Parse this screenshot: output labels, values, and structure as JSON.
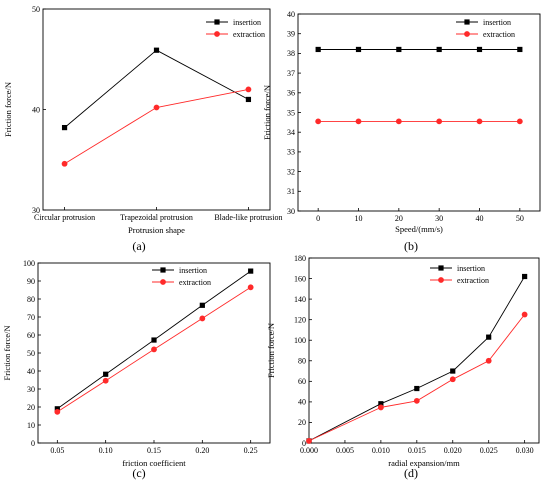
{
  "chart_data": [
    {
      "id": "a",
      "type": "line",
      "caption": "(a)",
      "categories": [
        "Circular protrusion",
        "Trapezoidal protrusion",
        "Blade-like protrusion"
      ],
      "series": [
        {
          "name": "insertion",
          "values": [
            38.2,
            45.9,
            41.0
          ],
          "color": "#000000",
          "marker": "square"
        },
        {
          "name": "extraction",
          "values": [
            34.6,
            40.2,
            42.0
          ],
          "color": "#ff2a2a",
          "marker": "circle"
        }
      ],
      "xlabel": "Protrusion shape",
      "ylabel": "Friction force/N",
      "ylim": [
        30,
        50
      ],
      "yticks": [
        30,
        40,
        50
      ],
      "grid": false,
      "legend": "top-right"
    },
    {
      "id": "b",
      "type": "line",
      "caption": "(b)",
      "x": [
        0,
        10,
        20,
        30,
        40,
        50
      ],
      "series": [
        {
          "name": "insertion",
          "values": [
            38.2,
            38.2,
            38.2,
            38.2,
            38.2,
            38.2
          ],
          "color": "#000000",
          "marker": "square"
        },
        {
          "name": "extraction",
          "values": [
            34.55,
            34.55,
            34.55,
            34.55,
            34.55,
            34.55
          ],
          "color": "#ff2a2a",
          "marker": "circle"
        }
      ],
      "xlabel": "Speed/(mm/s)",
      "ylabel": "Friction force/N",
      "xlim": [
        -5,
        55
      ],
      "xticks": [
        0,
        10,
        20,
        30,
        40,
        50
      ],
      "ylim": [
        30,
        40
      ],
      "yticks": [
        30,
        31,
        32,
        33,
        34,
        35,
        36,
        37,
        38,
        39,
        40
      ],
      "grid": false,
      "legend": "top-right"
    },
    {
      "id": "c",
      "type": "line",
      "caption": "(c)",
      "x": [
        0.05,
        0.1,
        0.15,
        0.2,
        0.25
      ],
      "x_labels": [
        "0.05",
        "0.10",
        "0.15",
        "0.20",
        "0.25"
      ],
      "series": [
        {
          "name": "insertion",
          "values": [
            19.0,
            38.2,
            57.2,
            76.5,
            95.5
          ],
          "color": "#000000",
          "marker": "square"
        },
        {
          "name": "extraction",
          "values": [
            17.3,
            34.6,
            52.0,
            69.2,
            86.5
          ],
          "color": "#ff2a2a",
          "marker": "circle"
        }
      ],
      "xlabel": "friction coefficient",
      "ylabel": "Friction force/N",
      "xlim": [
        0.03,
        0.27
      ],
      "ylim": [
        0,
        100
      ],
      "yticks": [
        0,
        10,
        20,
        30,
        40,
        50,
        60,
        70,
        80,
        90,
        100
      ],
      "grid": false,
      "legend": "top-center"
    },
    {
      "id": "d",
      "type": "line",
      "caption": "(d)",
      "x": [
        0,
        0.01,
        0.015,
        0.02,
        0.025,
        0.03
      ],
      "x_ticks": [
        0,
        0.005,
        0.01,
        0.015,
        0.02,
        0.025,
        0.03
      ],
      "x_labels": [
        "0.000",
        "0.005",
        "0.010",
        "0.015",
        "0.020",
        "0.025",
        "0.030"
      ],
      "series": [
        {
          "name": "insertion",
          "values": [
            2,
            38.2,
            53,
            70,
            103,
            162
          ],
          "color": "#000000",
          "marker": "square"
        },
        {
          "name": "extraction",
          "values": [
            2,
            34.6,
            41,
            62,
            80,
            125
          ],
          "color": "#ff2a2a",
          "marker": "circle"
        }
      ],
      "xlabel": "radial expansion/mm",
      "ylabel": "Friction force/N",
      "xlim": [
        0,
        0.032
      ],
      "ylim": [
        0,
        180
      ],
      "yticks": [
        0,
        20,
        40,
        60,
        80,
        100,
        120,
        140,
        160,
        180
      ],
      "grid": false,
      "legend": "top-center"
    }
  ]
}
